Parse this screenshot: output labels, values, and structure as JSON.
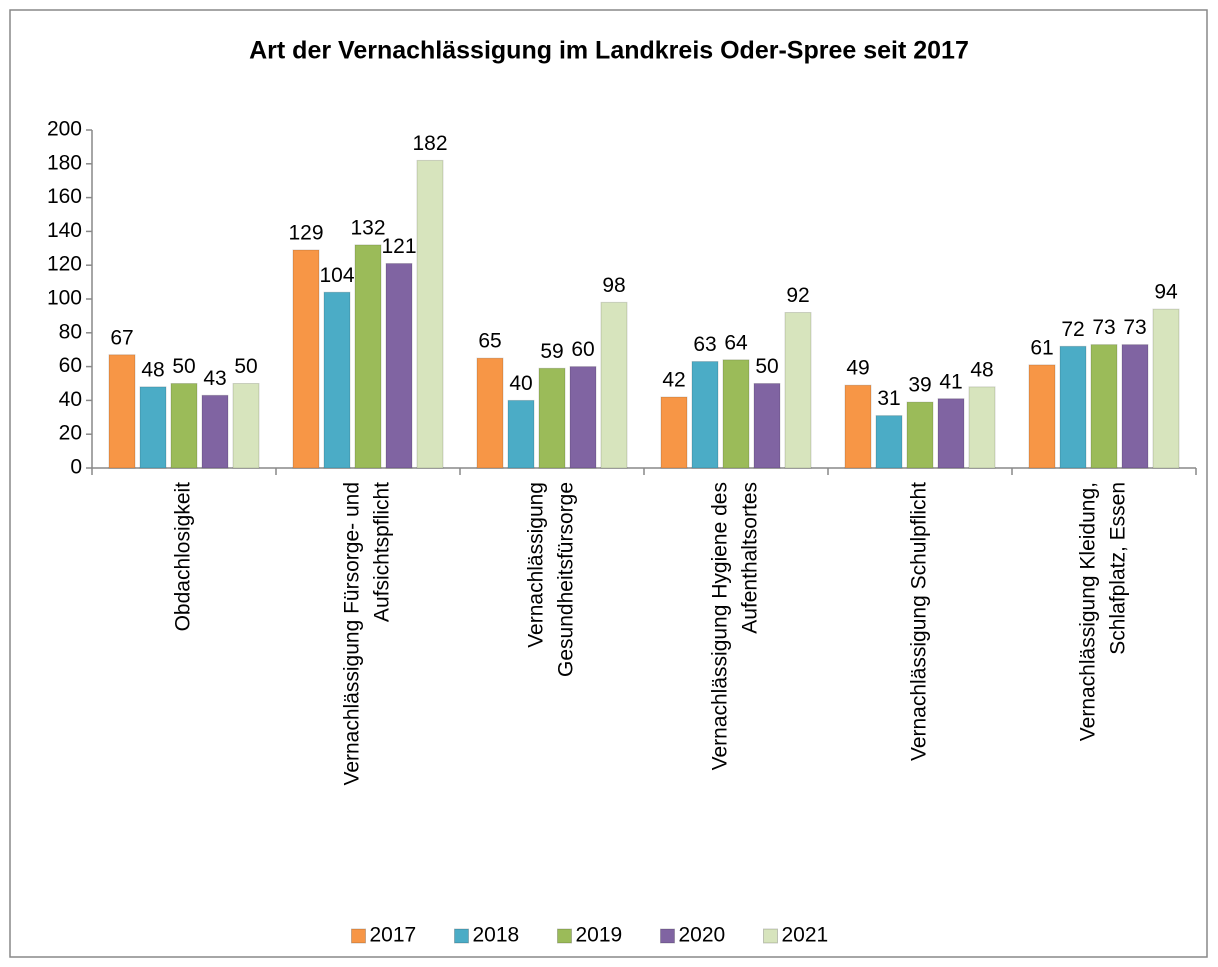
{
  "chart_data": {
    "type": "bar",
    "title": "Art der Vernachlässigung im Landkreis Oder-Spree seit 2017",
    "categories": [
      [
        "Obdachlosigkeit"
      ],
      [
        "Vernachlässigung Fürsorge- und",
        "Aufsichtspflicht"
      ],
      [
        "Vernachlässigung",
        "Gesundheitsfürsorge"
      ],
      [
        "Vernachlässigung Hygiene des",
        "Aufenthaltsortes"
      ],
      [
        "Vernachlässigung Schulpflicht"
      ],
      [
        "Vernachlässigung Kleidung,",
        "Schlafplatz, Essen"
      ]
    ],
    "series": [
      {
        "name": "2017",
        "color": "#f79646",
        "values": [
          67,
          129,
          65,
          42,
          49,
          61
        ]
      },
      {
        "name": "2018",
        "color": "#4bacc6",
        "values": [
          48,
          104,
          40,
          63,
          31,
          72
        ]
      },
      {
        "name": "2019",
        "color": "#9bbb59",
        "values": [
          50,
          132,
          59,
          64,
          39,
          73
        ]
      },
      {
        "name": "2020",
        "color": "#8064a2",
        "values": [
          43,
          121,
          60,
          50,
          41,
          73
        ]
      },
      {
        "name": "2021",
        "color": "#d7e4bd",
        "values": [
          50,
          182,
          98,
          92,
          48,
          94
        ]
      }
    ],
    "ylim": [
      0,
      200
    ],
    "yticks": [
      0,
      20,
      40,
      60,
      80,
      100,
      120,
      140,
      160,
      180,
      200
    ],
    "legend": "bottom"
  }
}
